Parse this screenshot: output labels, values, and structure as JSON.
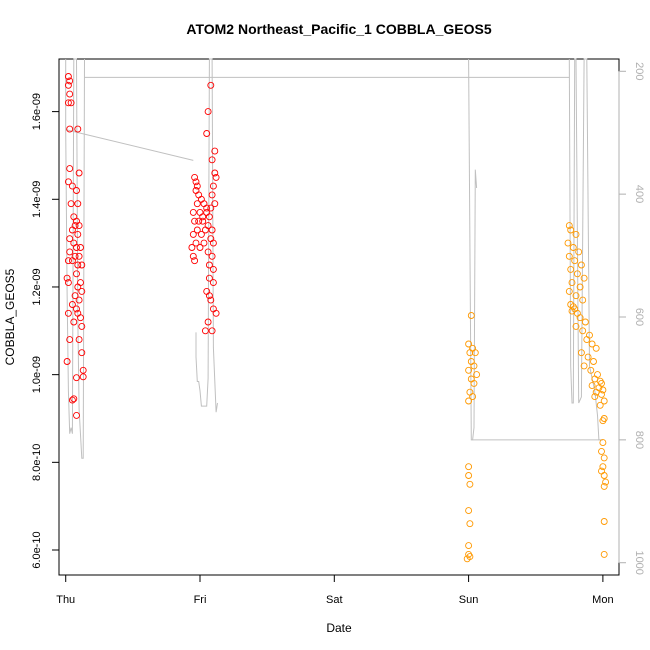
{
  "chart_data": {
    "type": "scatter",
    "title": "ATOM2 Northeast_Pacific_1 COBBLA_GEOS5",
    "xlabel": "Date",
    "ylabel": "COBBLA_GEOS5",
    "x_ticks": [
      "Thu",
      "Fri",
      "Sat",
      "Sun",
      "Mon"
    ],
    "y_ticks": [
      "6.0e-10",
      "8.0e-10",
      "1.0e-09",
      "1.2e-09",
      "1.4e-09",
      "1.6e-09"
    ],
    "y_tick_values": [
      6e-10,
      8e-10,
      1e-09,
      1.2e-09,
      1.4e-09,
      1.6e-09
    ],
    "ylim": [
      5.43e-10,
      1.72e-09
    ],
    "y2_ticks": [
      "200",
      "400",
      "600",
      "800",
      "1000"
    ],
    "y2_tick_values": [
      200,
      400,
      600,
      800,
      1000
    ],
    "y2lim": [
      1020,
      180
    ],
    "y2_reversed": true,
    "xlim_days": [
      -0.05,
      4.12
    ],
    "colors": {
      "series1": "#ff0000",
      "series2": "#ff9900",
      "altitude": "#c0c0c0",
      "axis": "#000000",
      "right_axis": "#b0b0b0"
    },
    "series": [
      {
        "marker": "circle-open",
        "color": "#ff0000",
        "points": [
          [
            0.02,
            1.68e-09
          ],
          [
            0.03,
            1.67e-09
          ],
          [
            0.02,
            1.66e-09
          ],
          [
            0.03,
            1.64e-09
          ],
          [
            0.02,
            1.62e-09
          ],
          [
            0.04,
            1.62e-09
          ],
          [
            0.03,
            1.56e-09
          ],
          [
            0.09,
            1.56e-09
          ],
          [
            0.03,
            1.47e-09
          ],
          [
            0.1,
            1.46e-09
          ],
          [
            0.02,
            1.44e-09
          ],
          [
            0.05,
            1.43e-09
          ],
          [
            0.08,
            1.42e-09
          ],
          [
            0.09,
            1.39e-09
          ],
          [
            0.04,
            1.39e-09
          ],
          [
            0.06,
            1.36e-09
          ],
          [
            0.08,
            1.35e-09
          ],
          [
            0.07,
            1.34e-09
          ],
          [
            0.1,
            1.34e-09
          ],
          [
            0.05,
            1.33e-09
          ],
          [
            0.09,
            1.32e-09
          ],
          [
            0.03,
            1.31e-09
          ],
          [
            0.06,
            1.3e-09
          ],
          [
            0.08,
            1.29e-09
          ],
          [
            0.11,
            1.29e-09
          ],
          [
            0.03,
            1.28e-09
          ],
          [
            0.07,
            1.27e-09
          ],
          [
            0.1,
            1.27e-09
          ],
          [
            0.02,
            1.26e-09
          ],
          [
            0.05,
            1.26e-09
          ],
          [
            0.09,
            1.25e-09
          ],
          [
            0.12,
            1.25e-09
          ],
          [
            0.08,
            1.23e-09
          ],
          [
            0.01,
            1.22e-09
          ],
          [
            0.11,
            1.21e-09
          ],
          [
            0.02,
            1.21e-09
          ],
          [
            0.09,
            1.2e-09
          ],
          [
            0.12,
            1.19e-09
          ],
          [
            0.07,
            1.18e-09
          ],
          [
            0.1,
            1.17e-09
          ],
          [
            0.05,
            1.16e-09
          ],
          [
            0.08,
            1.15e-09
          ],
          [
            0.02,
            1.14e-09
          ],
          [
            0.09,
            1.14e-09
          ],
          [
            0.11,
            1.13e-09
          ],
          [
            0.06,
            1.12e-09
          ],
          [
            0.12,
            1.11e-09
          ],
          [
            0.1,
            1.08e-09
          ],
          [
            0.03,
            1.08e-09
          ],
          [
            0.12,
            1.05e-09
          ],
          [
            0.01,
            1.03e-09
          ],
          [
            0.13,
            1.01e-09
          ],
          [
            0.13,
            9.95e-10
          ],
          [
            0.08,
            9.93e-10
          ],
          [
            0.06,
            9.45e-10
          ],
          [
            0.05,
            9.42e-10
          ],
          [
            0.08,
            9.07e-10
          ],
          [
            0.96,
            1.45e-09
          ],
          [
            0.97,
            1.44e-09
          ],
          [
            0.98,
            1.43e-09
          ],
          [
            0.97,
            1.42e-09
          ],
          [
            0.99,
            1.41e-09
          ],
          [
            1.01,
            1.4e-09
          ],
          [
            0.98,
            1.39e-09
          ],
          [
            1.03,
            1.39e-09
          ],
          [
            1.05,
            1.38e-09
          ],
          [
            0.95,
            1.37e-09
          ],
          [
            1.0,
            1.37e-09
          ],
          [
            1.07,
            1.36e-09
          ],
          [
            0.96,
            1.35e-09
          ],
          [
            1.02,
            1.35e-09
          ],
          [
            1.06,
            1.34e-09
          ],
          [
            0.98,
            1.33e-09
          ],
          [
            1.04,
            1.33e-09
          ],
          [
            1.09,
            1.33e-09
          ],
          [
            0.95,
            1.32e-09
          ],
          [
            1.01,
            1.32e-09
          ],
          [
            1.08,
            1.31e-09
          ],
          [
            0.97,
            1.3e-09
          ],
          [
            1.03,
            1.3e-09
          ],
          [
            1.1,
            1.3e-09
          ],
          [
            0.94,
            1.29e-09
          ],
          [
            1.0,
            1.29e-09
          ],
          [
            1.06,
            1.28e-09
          ],
          [
            0.95,
            1.27e-09
          ],
          [
            1.09,
            1.27e-09
          ],
          [
            0.96,
            1.26e-09
          ],
          [
            1.07,
            1.25e-09
          ],
          [
            1.1,
            1.24e-09
          ],
          [
            0.99,
            1.35e-09
          ],
          [
            1.02,
            1.36e-09
          ],
          [
            1.05,
            1.37e-09
          ],
          [
            1.08,
            1.38e-09
          ],
          [
            1.11,
            1.39e-09
          ],
          [
            1.09,
            1.41e-09
          ],
          [
            1.1,
            1.43e-09
          ],
          [
            1.12,
            1.45e-09
          ],
          [
            1.11,
            1.46e-09
          ],
          [
            1.09,
            1.49e-09
          ],
          [
            1.11,
            1.51e-09
          ],
          [
            1.05,
            1.55e-09
          ],
          [
            1.06,
            1.6e-09
          ],
          [
            1.08,
            1.66e-09
          ],
          [
            1.05,
            1.19e-09
          ],
          [
            1.07,
            1.18e-09
          ],
          [
            1.08,
            1.17e-09
          ],
          [
            1.1,
            1.15e-09
          ],
          [
            1.12,
            1.14e-09
          ],
          [
            1.06,
            1.12e-09
          ],
          [
            1.09,
            1.1e-09
          ],
          [
            1.04,
            1.1e-09
          ],
          [
            1.07,
            1.22e-09
          ],
          [
            1.1,
            1.21e-09
          ]
        ]
      },
      {
        "marker": "circle-open",
        "color": "#ff9900",
        "points": [
          [
            3.02,
            1.135e-09
          ],
          [
            3.0,
            1.07e-09
          ],
          [
            3.01,
            1.05e-09
          ],
          [
            3.03,
            1.06e-09
          ],
          [
            3.05,
            1.05e-09
          ],
          [
            3.02,
            1.03e-09
          ],
          [
            3.04,
            1.02e-09
          ],
          [
            3.0,
            1.01e-09
          ],
          [
            3.06,
            1e-09
          ],
          [
            3.02,
            9.9e-10
          ],
          [
            3.04,
            9.8e-10
          ],
          [
            3.01,
            9.6e-10
          ],
          [
            3.03,
            9.5e-10
          ],
          [
            3.0,
            9.4e-10
          ],
          [
            3.0,
            7.9e-10
          ],
          [
            3.0,
            7.7e-10
          ],
          [
            3.01,
            7.5e-10
          ],
          [
            3.0,
            6.9e-10
          ],
          [
            3.01,
            6.6e-10
          ],
          [
            3.0,
            6.1e-10
          ],
          [
            3.0,
            5.9e-10
          ],
          [
            3.01,
            5.85e-10
          ],
          [
            2.99,
            5.8e-10
          ],
          [
            3.75,
            1.34e-09
          ],
          [
            3.76,
            1.33e-09
          ],
          [
            3.8,
            1.32e-09
          ],
          [
            3.74,
            1.3e-09
          ],
          [
            3.78,
            1.29e-09
          ],
          [
            3.82,
            1.28e-09
          ],
          [
            3.75,
            1.27e-09
          ],
          [
            3.79,
            1.26e-09
          ],
          [
            3.84,
            1.25e-09
          ],
          [
            3.76,
            1.24e-09
          ],
          [
            3.81,
            1.23e-09
          ],
          [
            3.86,
            1.22e-09
          ],
          [
            3.77,
            1.21e-09
          ],
          [
            3.83,
            1.2e-09
          ],
          [
            3.75,
            1.19e-09
          ],
          [
            3.8,
            1.18e-09
          ],
          [
            3.85,
            1.17e-09
          ],
          [
            3.76,
            1.16e-09
          ],
          [
            3.78,
            1.155e-09
          ],
          [
            3.79,
            1.15e-09
          ],
          [
            3.77,
            1.145e-09
          ],
          [
            3.81,
            1.14e-09
          ],
          [
            3.83,
            1.13e-09
          ],
          [
            3.87,
            1.12e-09
          ],
          [
            3.8,
            1.11e-09
          ],
          [
            3.85,
            1.1e-09
          ],
          [
            3.9,
            1.09e-09
          ],
          [
            3.88,
            1.08e-09
          ],
          [
            3.92,
            1.07e-09
          ],
          [
            3.95,
            1.06e-09
          ],
          [
            3.84,
            1.05e-09
          ],
          [
            3.89,
            1.04e-09
          ],
          [
            3.93,
            1.03e-09
          ],
          [
            3.86,
            1.02e-09
          ],
          [
            3.91,
            1.01e-09
          ],
          [
            3.96,
            1e-09
          ],
          [
            3.94,
            9.9e-10
          ],
          [
            3.98,
            9.85e-10
          ],
          [
            3.99,
            9.8e-10
          ],
          [
            3.92,
            9.75e-10
          ],
          [
            3.97,
            9.7e-10
          ],
          [
            4.0,
            9.65e-10
          ],
          [
            3.95,
            9.6e-10
          ],
          [
            3.99,
            9.55e-10
          ],
          [
            3.94,
            9.5e-10
          ],
          [
            4.01,
            9.4e-10
          ],
          [
            3.98,
            9.3e-10
          ],
          [
            4.01,
            9e-10
          ],
          [
            4.0,
            8.95e-10
          ],
          [
            4.0,
            8.45e-10
          ],
          [
            3.99,
            8.25e-10
          ],
          [
            4.01,
            8.1e-10
          ],
          [
            4.0,
            7.9e-10
          ],
          [
            3.99,
            7.8e-10
          ],
          [
            4.01,
            7.7e-10
          ],
          [
            4.02,
            7.55e-10
          ],
          [
            4.01,
            7.45e-10
          ],
          [
            4.01,
            6.65e-10
          ],
          [
            4.01,
            5.9e-10
          ]
        ]
      }
    ],
    "altitude_line": {
      "color": "#c0c0c0",
      "segments": [
        [
          [
            0.0,
            180
          ],
          [
            0.0,
            295
          ],
          [
            0.01,
            560
          ],
          [
            0.02,
            720
          ],
          [
            0.03,
            790
          ],
          [
            0.04,
            780
          ],
          [
            0.05,
            790
          ],
          [
            0.06,
            180
          ],
          [
            0.08,
            180
          ],
          [
            0.09,
            600
          ],
          [
            0.1,
            750
          ],
          [
            0.12,
            830
          ],
          [
            0.13,
            830
          ],
          [
            0.14,
            180
          ]
        ],
        [
          [
            0.0,
            295
          ],
          [
            0.95,
            345
          ]
        ],
        [
          [
            0.14,
            210
          ],
          [
            3.75,
            210
          ]
        ],
        [
          [
            0.97,
            625
          ],
          [
            0.97,
            665
          ],
          [
            0.98,
            705
          ],
          [
            0.99,
            705
          ],
          [
            1.0,
            720
          ],
          [
            1.01,
            745
          ],
          [
            1.05,
            745
          ],
          [
            1.06,
            700
          ],
          [
            1.07,
            180
          ],
          [
            1.09,
            180
          ],
          [
            1.1,
            650
          ],
          [
            1.12,
            755
          ],
          [
            1.13,
            740
          ]
        ],
        [
          [
            3.0,
            180
          ],
          [
            3.02,
            800
          ],
          [
            3.03,
            800
          ],
          [
            3.04,
            780
          ],
          [
            3.05,
            360
          ],
          [
            3.06,
            390
          ]
        ],
        [
          [
            3.03,
            800
          ],
          [
            4.0,
            800
          ]
        ],
        [
          [
            3.75,
            180
          ],
          [
            3.76,
            680
          ],
          [
            3.77,
            740
          ],
          [
            3.78,
            740
          ],
          [
            3.79,
            180
          ],
          [
            3.8,
            180
          ],
          [
            3.82,
            740
          ],
          [
            3.84,
            730
          ],
          [
            3.86,
            180
          ],
          [
            3.88,
            180
          ],
          [
            3.9,
            680
          ],
          [
            3.92,
            700
          ],
          [
            3.94,
            720
          ],
          [
            3.96,
            760
          ],
          [
            3.97,
            800
          ],
          [
            4.0,
            800
          ]
        ]
      ]
    }
  }
}
